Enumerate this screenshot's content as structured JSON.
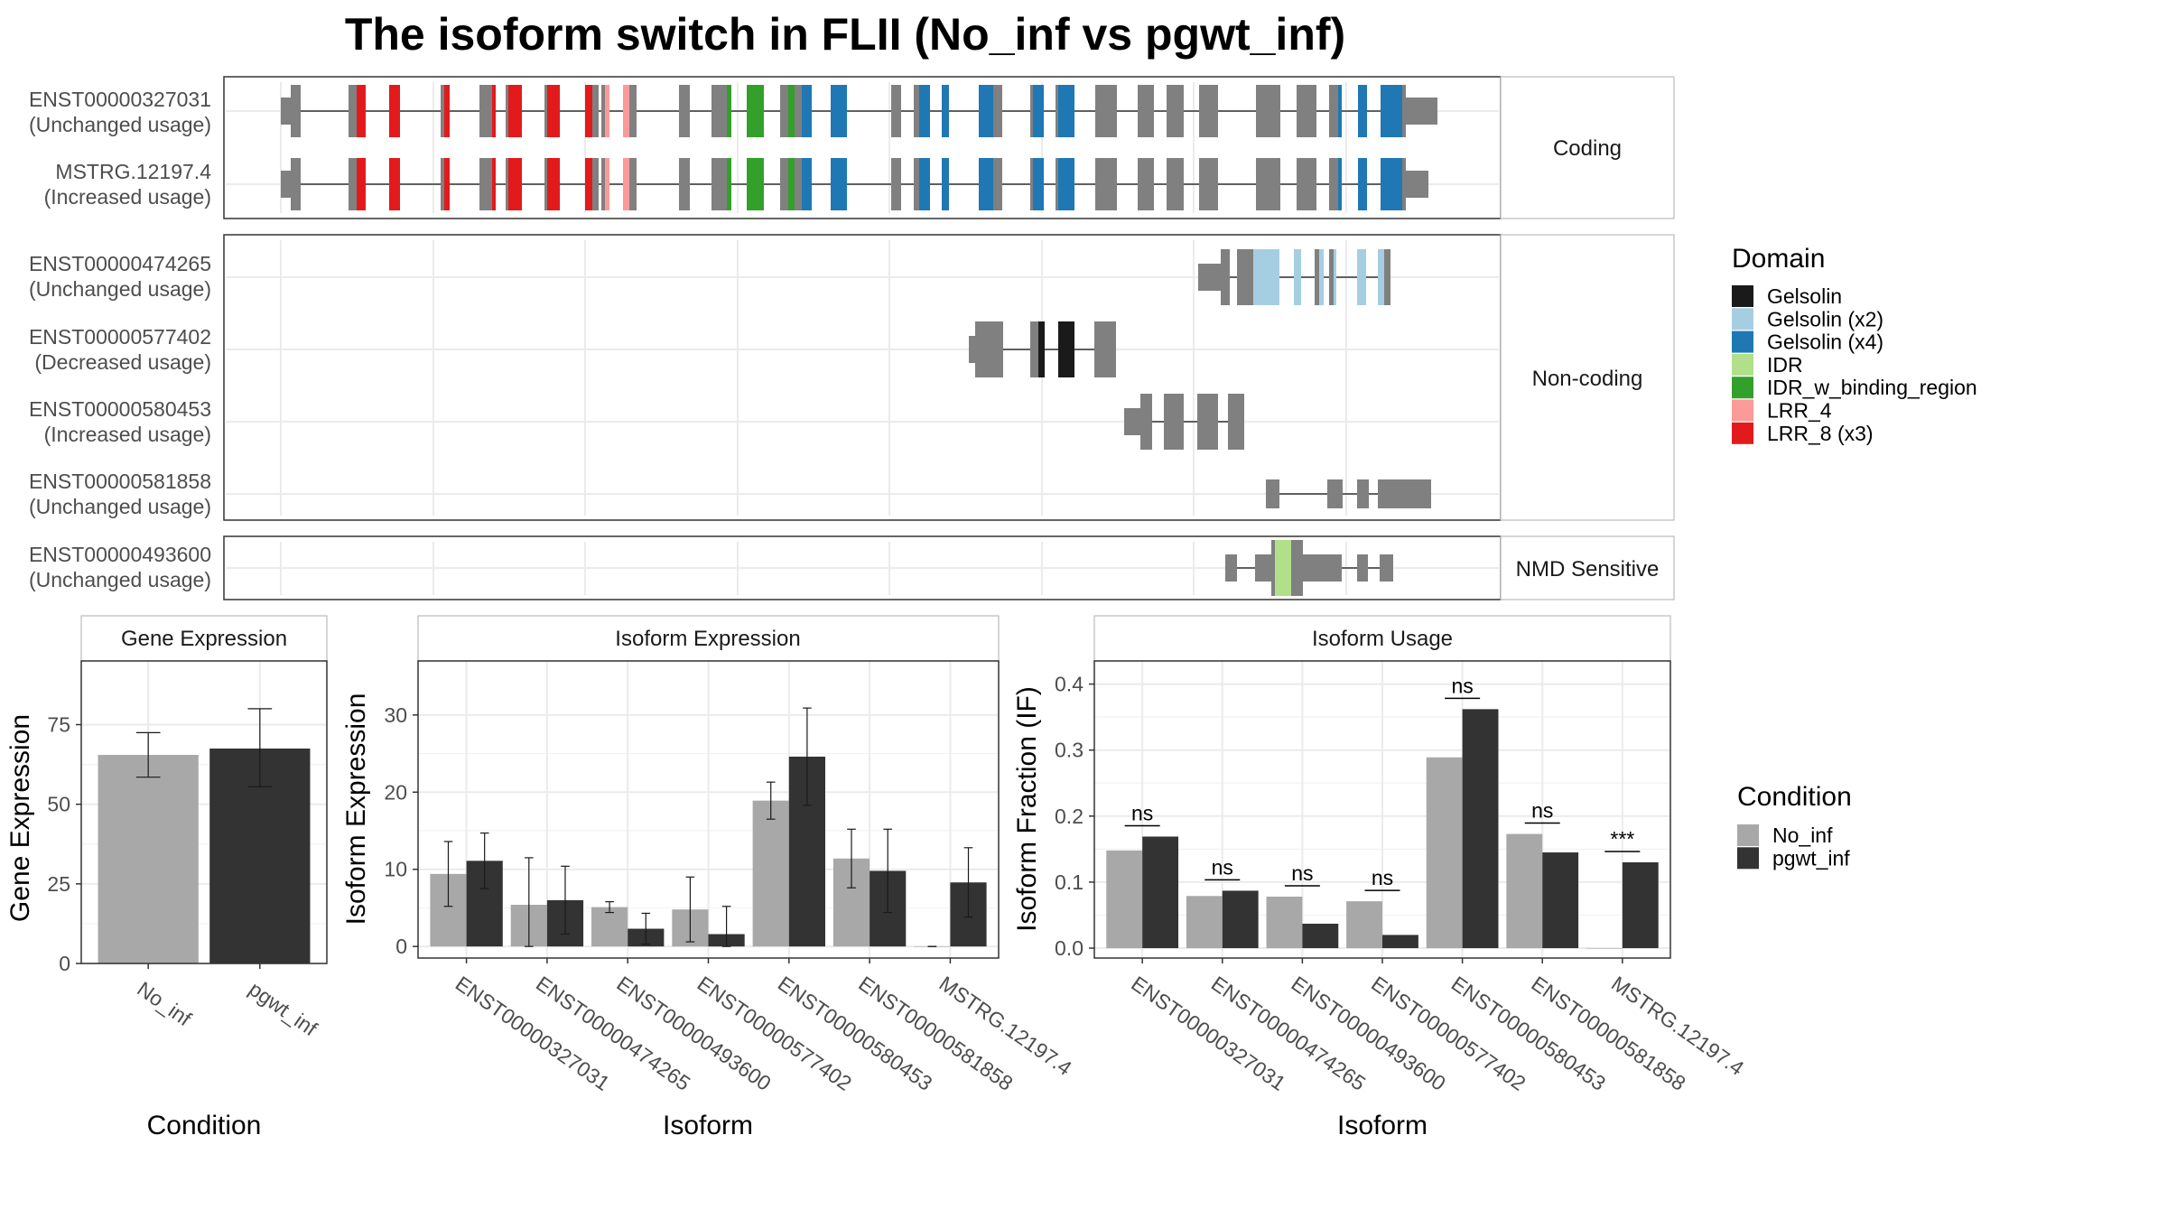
{
  "title": "The isoform switch in FLII (No_inf vs pgwt_inf)",
  "colors": {
    "gelsolin": "#1a1a1a",
    "gelsolin_x2": "#a6cee3",
    "gelsolin_x4": "#1f78b4",
    "idr": "#b2df8a",
    "idr_w_binding_region": "#33a02c",
    "lrr_4": "#fb9a99",
    "lrr_8_x3": "#e31a1c",
    "exon_grey": "#808080",
    "no_inf": "#a8a8a8",
    "pgwt_inf": "#333333"
  },
  "transcripts": {
    "panels": [
      "Coding",
      "Non-coding",
      "NMD Sensitive"
    ],
    "tracks": [
      {
        "id": "ENST00000327031",
        "usage": "(Unchanged usage)",
        "panel": "Coding"
      },
      {
        "id": "MSTRG.12197.4",
        "usage": "(Increased usage)",
        "panel": "Coding"
      },
      {
        "id": "ENST00000474265",
        "usage": "(Unchanged usage)",
        "panel": "Non-coding"
      },
      {
        "id": "ENST00000577402",
        "usage": "(Decreased usage)",
        "panel": "Non-coding"
      },
      {
        "id": "ENST00000580453",
        "usage": "(Increased usage)",
        "panel": "Non-coding"
      },
      {
        "id": "ENST00000581858",
        "usage": "(Unchanged usage)",
        "panel": "Non-coding"
      },
      {
        "id": "ENST00000493600",
        "usage": "(Unchanged usage)",
        "panel": "NMD Sensitive"
      }
    ]
  },
  "legend_domain": {
    "title": "Domain",
    "items": [
      {
        "label": "Gelsolin",
        "color": "#1a1a1a"
      },
      {
        "label": "Gelsolin (x2)",
        "color": "#a6cee3"
      },
      {
        "label": "Gelsolin (x4)",
        "color": "#1f78b4"
      },
      {
        "label": "IDR",
        "color": "#b2df8a"
      },
      {
        "label": "IDR_w_binding_region",
        "color": "#33a02c"
      },
      {
        "label": "LRR_4",
        "color": "#fb9a99"
      },
      {
        "label": "LRR_8 (x3)",
        "color": "#e31a1c"
      }
    ]
  },
  "legend_condition": {
    "title": "Condition",
    "items": [
      {
        "label": "No_inf",
        "color": "#a8a8a8"
      },
      {
        "label": "pgwt_inf",
        "color": "#333333"
      }
    ]
  },
  "chart_data": [
    {
      "type": "bar",
      "panel_title": "Gene Expression",
      "xlabel": "Condition",
      "ylabel": "Gene Expression",
      "categories": [
        "No_inf",
        "pgwt_inf"
      ],
      "values": [
        65.5,
        67.5
      ],
      "errors": [
        [
          58.5,
          72.5
        ],
        [
          55.5,
          80.0
        ]
      ],
      "ylim": [
        0,
        95
      ],
      "yticks": [
        0,
        25,
        50,
        75
      ],
      "grid": true
    },
    {
      "type": "bar",
      "panel_title": "Isoform Expression",
      "xlabel": "Isoform",
      "ylabel": "Isoform Expression",
      "categories": [
        "ENST00000327031",
        "ENST00000474265",
        "ENST00000493600",
        "ENST00000577402",
        "ENST00000580453",
        "ENST00000581858",
        "MSTRG.12197.4"
      ],
      "series": [
        {
          "name": "No_inf",
          "values": [
            9.4,
            5.4,
            5.1,
            4.8,
            18.9,
            11.4,
            0.0
          ],
          "errors": [
            [
              5.2,
              13.6
            ],
            [
              0.0,
              11.5
            ],
            [
              4.4,
              5.8
            ],
            [
              0.6,
              9.0
            ],
            [
              16.5,
              21.3
            ],
            [
              7.6,
              15.2
            ],
            [
              0.0,
              0.0
            ]
          ]
        },
        {
          "name": "pgwt_inf",
          "values": [
            11.1,
            6.0,
            2.3,
            1.6,
            24.6,
            9.8,
            8.3
          ],
          "errors": [
            [
              7.5,
              14.7
            ],
            [
              1.6,
              10.4
            ],
            [
              0.3,
              4.3
            ],
            [
              0.0,
              5.2
            ],
            [
              18.3,
              30.9
            ],
            [
              4.4,
              15.2
            ],
            [
              3.8,
              12.8
            ]
          ]
        }
      ],
      "ylim": [
        -1.5,
        37
      ],
      "yticks": [
        0,
        10,
        20,
        30
      ],
      "grid": true
    },
    {
      "type": "bar",
      "panel_title": "Isoform Usage",
      "xlabel": "Isoform",
      "ylabel": "Isoform Fraction (IF)",
      "categories": [
        "ENST00000327031",
        "ENST00000474265",
        "ENST00000493600",
        "ENST00000577402",
        "ENST00000580453",
        "ENST00000581858",
        "MSTRG.12197.4"
      ],
      "series": [
        {
          "name": "No_inf",
          "values": [
            0.148,
            0.079,
            0.078,
            0.071,
            0.289,
            0.173,
            0.0
          ]
        },
        {
          "name": "pgwt_inf",
          "values": [
            0.169,
            0.087,
            0.037,
            0.02,
            0.362,
            0.145,
            0.13
          ]
        }
      ],
      "significance": [
        "ns",
        "ns",
        "ns",
        "ns",
        "ns",
        "ns",
        "***"
      ],
      "ylim": [
        -0.015,
        0.435
      ],
      "yticks": [
        0.0,
        0.1,
        0.2,
        0.3,
        0.4
      ],
      "ytick_labels": [
        "0.0",
        "0.1",
        "0.2",
        "0.3",
        "0.4"
      ],
      "grid": true
    }
  ]
}
